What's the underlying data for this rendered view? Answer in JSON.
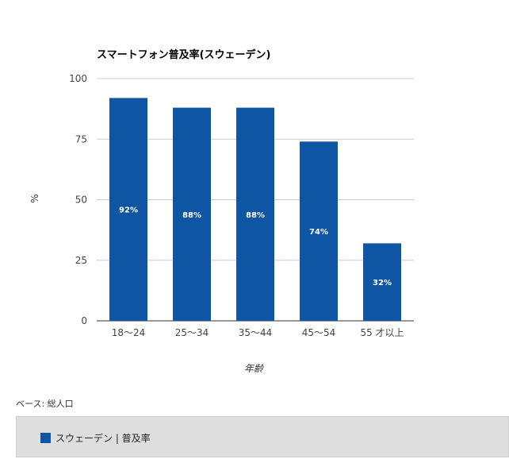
{
  "chart_data": {
    "type": "bar",
    "title": "スマートフォン普及率(スウェーデン)",
    "xlabel": "年齢",
    "ylabel": "%",
    "categories": [
      "18〜24",
      "25〜34",
      "35〜44",
      "45〜54",
      "55 才以上"
    ],
    "series": [
      {
        "name": "スウェーデン | 普及率",
        "values": [
          92,
          88,
          88,
          74,
          32
        ],
        "labels": [
          "92%",
          "88%",
          "88%",
          "74%",
          "32%"
        ],
        "color": "#0e56a4"
      }
    ],
    "ylim": [
      0,
      100
    ],
    "yticks": [
      "0",
      "25",
      "50",
      "75",
      "100"
    ],
    "grid": true,
    "legend_position": "bottom"
  },
  "footer": {
    "base_note": "ベース: 総人口"
  },
  "colors": {
    "bar": "#0e56a4",
    "grid": "#cccccc",
    "legend_bg": "#dedede"
  }
}
